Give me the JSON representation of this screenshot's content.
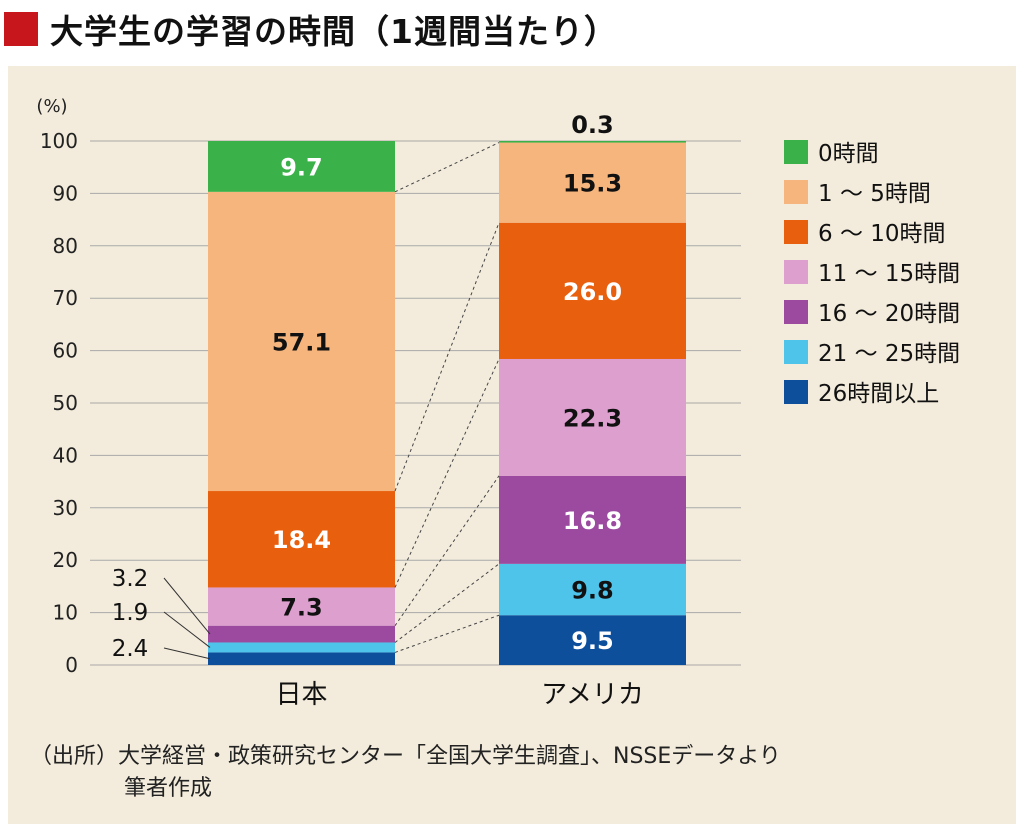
{
  "title": "大学生の学習の時間（1週間当たり）",
  "source_line1": "（出所）大学経営・政策研究センター「全国大学生調査」、NSSEデータより",
  "source_line2": "筆者作成",
  "chart_data": {
    "type": "bar",
    "stacked": true,
    "unit_label": "(%)",
    "ylim": [
      0,
      100
    ],
    "yticks": [
      0,
      10,
      20,
      30,
      40,
      50,
      60,
      70,
      80,
      90,
      100
    ],
    "categories": [
      "日本",
      "アメリカ"
    ],
    "series": [
      {
        "name": "26時間以上",
        "color": "#0e4f9c",
        "values": [
          2.4,
          9.5
        ],
        "labels": [
          "2.4",
          "9.5"
        ]
      },
      {
        "name": "21 ～ 25時間",
        "color": "#4ec4ea",
        "values": [
          1.9,
          9.8
        ],
        "labels": [
          "1.9",
          "9.8"
        ]
      },
      {
        "name": "16 ～ 20時間",
        "color": "#9b4aa0",
        "values": [
          3.2,
          16.8
        ],
        "labels": [
          "3.2",
          "16.8"
        ]
      },
      {
        "name": "11 ～ 15時間",
        "color": "#dd9fce",
        "values": [
          7.3,
          22.3
        ],
        "labels": [
          "7.3",
          "22.3"
        ]
      },
      {
        "name": "6 ～ 10時間",
        "color": "#e85f0e",
        "values": [
          18.4,
          26.0
        ],
        "labels": [
          "18.4",
          "26.0"
        ]
      },
      {
        "name": "1 ～ 5時間",
        "color": "#f6b57c",
        "values": [
          57.1,
          15.3
        ],
        "labels": [
          "57.1",
          "15.3"
        ]
      },
      {
        "name": "0時間",
        "color": "#3bb14a",
        "values": [
          9.7,
          0.3
        ],
        "labels": [
          "9.7",
          "0.3"
        ]
      }
    ],
    "legend": "right"
  }
}
